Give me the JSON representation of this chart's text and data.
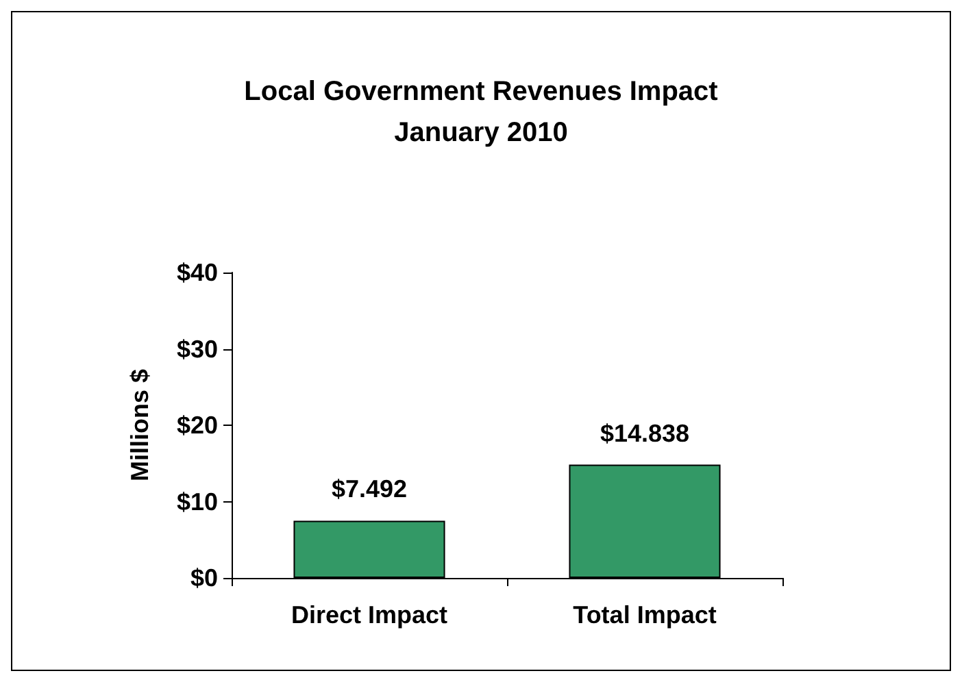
{
  "chart_data": {
    "type": "bar",
    "title": "Local Government Revenues Impact\nJanuary 2010",
    "ylabel": "Millions $",
    "categories": [
      "Direct Impact",
      "Total Impact"
    ],
    "values": [
      7.492,
      14.838
    ],
    "value_labels": [
      "$7.492",
      "$14.838"
    ],
    "color": "#339966",
    "ylim": [
      0,
      40
    ],
    "yticks": [
      {
        "value": 0,
        "label": "$0"
      },
      {
        "value": 10,
        "label": "$10"
      },
      {
        "value": 20,
        "label": "$20"
      },
      {
        "value": 30,
        "label": "$30"
      },
      {
        "value": 40,
        "label": "$40"
      }
    ],
    "grid": false
  }
}
